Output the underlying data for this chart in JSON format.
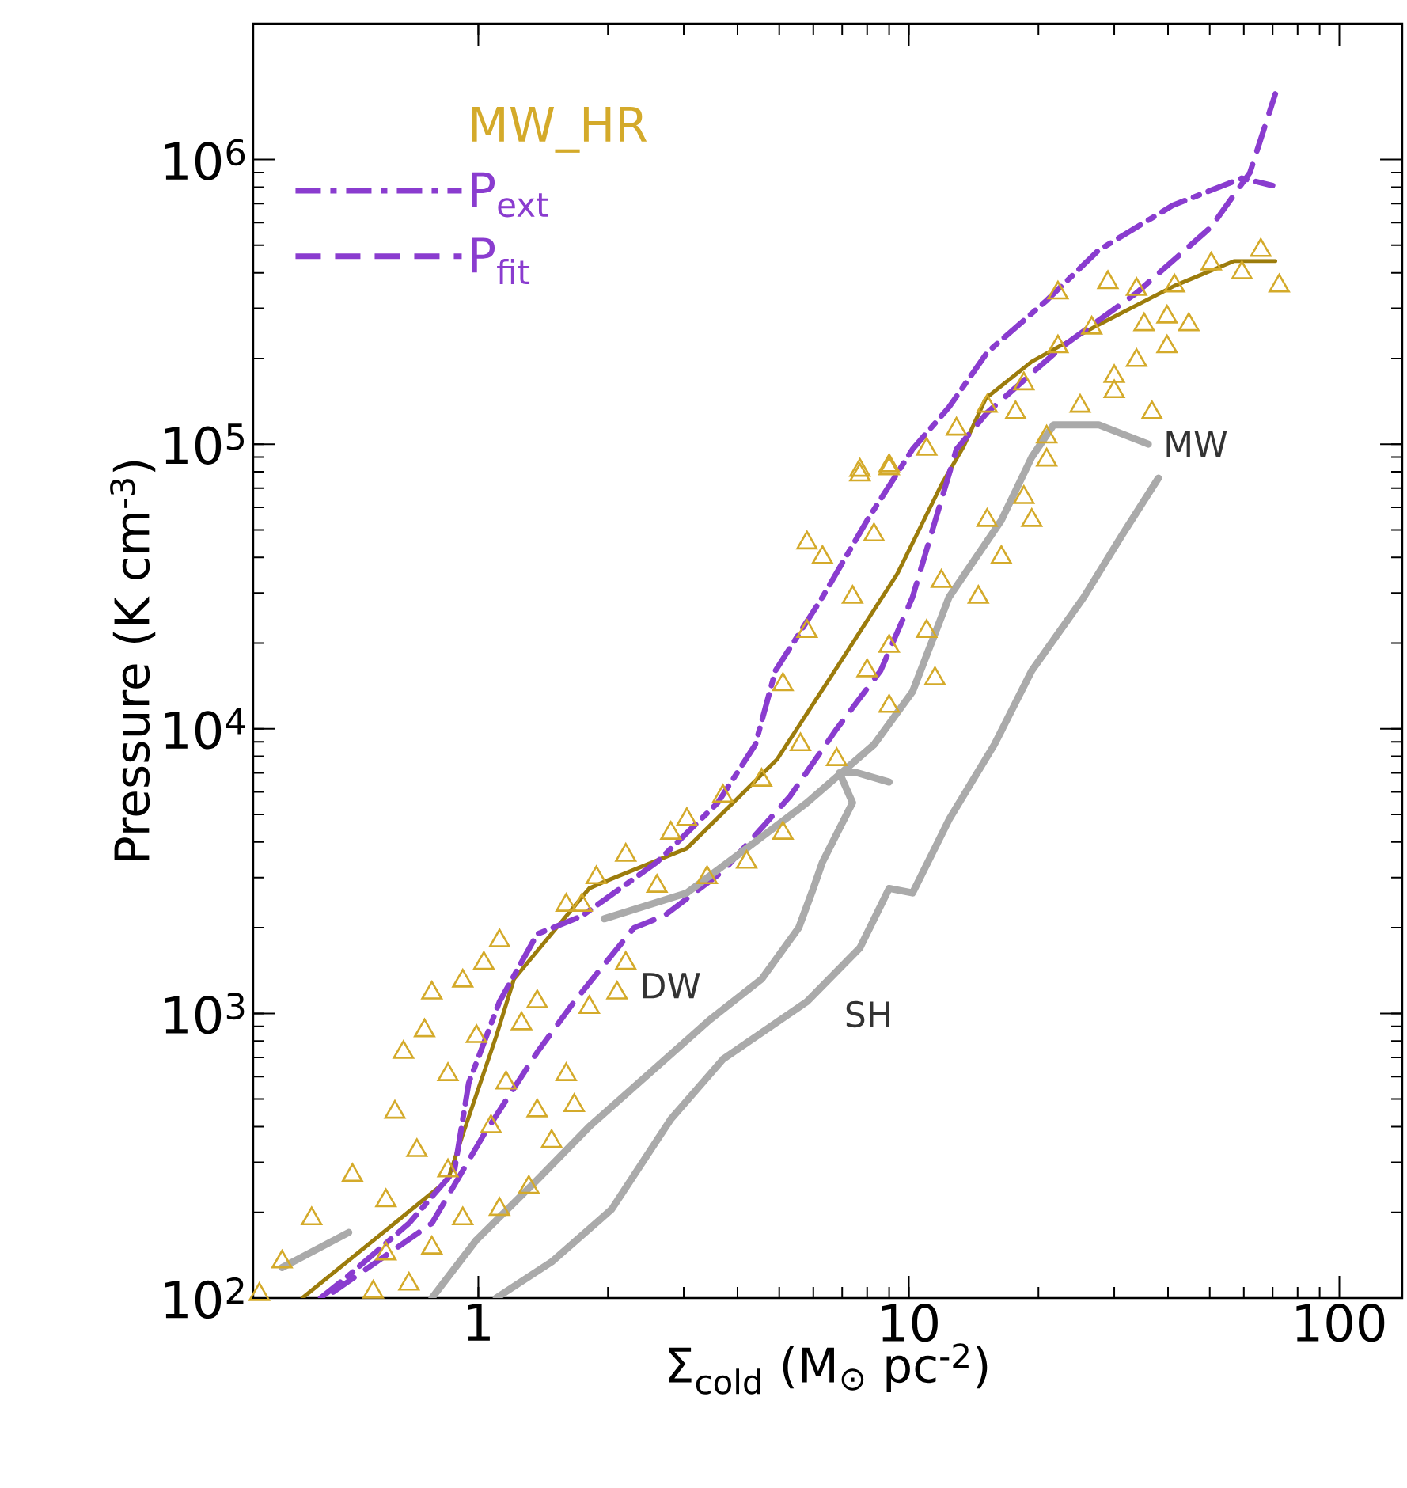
{
  "chart_data": {
    "type": "scatter",
    "xlabel": "Σ$_{cold}$  (M$_{⊙}$ pc$^{-2}$)",
    "ylabel": "Pressure  (K cm$^{-3}$)",
    "log": "xy",
    "legend": "top left",
    "xlim": [
      0.3,
      140
    ],
    "ylim": [
      100,
      3000000
    ],
    "xticks": [
      1,
      10,
      100
    ],
    "yticks": [
      {
        "value": 100,
        "label": "10$^{2}$"
      },
      {
        "value": 1000,
        "label": "10$^{3}$"
      },
      {
        "value": 10000,
        "label": "10$^{4}$"
      },
      {
        "value": 100000,
        "label": "10$^{5}$"
      },
      {
        "value": 1000000,
        "label": "10$^{6}$"
      }
    ],
    "series": [
      {
        "name": "MW_HR",
        "type": "scatter",
        "marker": "triangle",
        "color": "#d4aa2a",
        "x": [
          65.7,
          72.5,
          50.4,
          59.4,
          41.4,
          33.8,
          29,
          22.2,
          39.8,
          44.7,
          35.2,
          26.6,
          39.8,
          33.8,
          30,
          30,
          36.7,
          25,
          22.2,
          18.5,
          15.2,
          17.7,
          20.9,
          12.9,
          11,
          7.7,
          9.0,
          7.7,
          9.0,
          20.9,
          18.5,
          15.2,
          19.3,
          16.4,
          14.5,
          11.9,
          5.8,
          6.3,
          8.3,
          7.4,
          11,
          11.5,
          9.0,
          5.8,
          5.1,
          8.0,
          5.6,
          9.0,
          6.8,
          4.55,
          5.1,
          3.7,
          3.05,
          2.8,
          4.2,
          2.2,
          1.88,
          2.6,
          3.4,
          1.6,
          1.74,
          2.2,
          2.1,
          1.81,
          1.12,
          0.92,
          0.67,
          0.75,
          0.64,
          0.72,
          0.61,
          0.51,
          0.41,
          0.35,
          0.31,
          1.67,
          1.6,
          1.48,
          1.37,
          1.31,
          1.12,
          0.92,
          0.78,
          0.61,
          0.57,
          0.69,
          0.85,
          0.99,
          1.26,
          0.78,
          1.03,
          0.85,
          1.07,
          1.16,
          1.37
        ],
        "values": [
          480000,
          360000,
          430000,
          400000,
          360000,
          350000,
          370000,
          340000,
          280000,
          263000,
          263000,
          256000,
          220000,
          197000,
          173000,
          153000,
          129000,
          136000,
          220000,
          163000,
          136000,
          129000,
          106000,
          113000,
          96000,
          81000,
          84000,
          78000,
          82000,
          88000,
          65000,
          54000,
          54000,
          40000,
          29000,
          33000,
          45000,
          40000,
          48000,
          29000,
          22000,
          15000,
          12000,
          22000,
          14300,
          16000,
          8800,
          19500,
          7800,
          6600,
          4300,
          5800,
          4800,
          4300,
          3400,
          3600,
          3000,
          2800,
          3000,
          2400,
          2400,
          1500,
          1180,
          1050,
          1800,
          1300,
          730,
          870,
          450,
          330,
          220,
          270,
          190,
          134,
          103,
          475,
          610,
          355,
          455,
          245,
          205,
          190,
          150,
          143,
          105,
          112,
          610,
          830,
          920,
          1180,
          1500,
          280,
          400,
          570,
          1100
        ]
      },
      {
        "type": "line",
        "marker": "none",
        "line_style": "solid",
        "color": "#9c7c0c",
        "x": [
          0.39,
          0.85,
          0.92,
          1.1,
          1.21,
          1.81,
          1.96,
          3.05,
          4.94,
          6.8,
          9.4,
          11.9,
          13.4,
          15.1,
          19.3,
          27.6,
          41.4,
          57,
          71
        ],
        "values": [
          100,
          260,
          375,
          830,
          1320,
          2750,
          2900,
          3800,
          7800,
          16400,
          35000,
          72000,
          98000,
          145000,
          195000,
          263000,
          360000,
          440000,
          440000
        ]
      },
      {
        "name": "P$_{ext}$",
        "type": "line",
        "marker": "none",
        "line_style": "dashdot",
        "color": "#8a3ccf",
        "x": [
          0.43,
          0.5,
          0.69,
          0.88,
          0.95,
          1.12,
          1.37,
          1.74,
          2.6,
          3.6,
          4.4,
          4.9,
          6.3,
          8.0,
          10.2,
          12.4,
          15.2,
          20.9,
          27.6,
          41,
          59.4,
          70
        ],
        "values": [
          100,
          120,
          183,
          280,
          570,
          1100,
          1900,
          2200,
          3400,
          5500,
          8800,
          16000,
          29000,
          54000,
          96000,
          135000,
          210000,
          320000,
          480000,
          690000,
          860000,
          810000
        ]
      },
      {
        "name": "P$_{fit}$",
        "type": "line",
        "marker": "none",
        "line_style": "dashed",
        "color": "#8a3ccf",
        "x": [
          0.46,
          0.78,
          1.03,
          1.37,
          1.67,
          2.3,
          2.7,
          3.7,
          5.3,
          6.8,
          8.6,
          10.2,
          12.9,
          15.2,
          22.7,
          33.8,
          50.4,
          62,
          71
        ],
        "values": [
          105,
          183,
          375,
          730,
          1100,
          2000,
          2200,
          3160,
          5800,
          10000,
          16000,
          29000,
          96000,
          129000,
          220000,
          340000,
          580000,
          900000,
          1700000
        ]
      },
      {
        "name": "MW",
        "type": "line",
        "marker": "none",
        "line_style": "solid",
        "color": "#aaaaaa",
        "x": [
          0.35,
          0.5,
          1.0,
          1.96,
          3.05,
          4.2,
          5.8,
          8.3,
          10.2,
          12.4,
          16.4,
          19.3,
          21.7,
          27.6,
          36
        ],
        "values": [
          128,
          170,
          null,
          2150,
          2650,
          3800,
          5500,
          8800,
          13500,
          29000,
          54000,
          90000,
          117000,
          117000,
          100000
        ]
      },
      {
        "name": "DW",
        "type": "line",
        "marker": "none",
        "line_style": "solid",
        "color": "#aaaaaa",
        "x": [
          0.78,
          0.99,
          1.37,
          1.81,
          2.6,
          3.45,
          4.55,
          5.55,
          6.0,
          6.3,
          7.4,
          6.9,
          7.6,
          9.0
        ],
        "values": [
          100,
          160,
          260,
          400,
          650,
          950,
          1320,
          2000,
          2750,
          3400,
          5500,
          7000,
          7000,
          6500
        ]
      },
      {
        "name": "SH",
        "type": "line",
        "marker": "none",
        "line_style": "solid",
        "color": "#aaaaaa",
        "x": [
          1.1,
          1.48,
          2.04,
          2.8,
          3.7,
          5.8,
          7.7,
          9.0,
          10.2,
          12.4,
          15.8,
          19.3,
          25.5,
          31.3,
          38
        ],
        "values": [
          100,
          134,
          205,
          425,
          690,
          1100,
          1700,
          2750,
          2650,
          4800,
          8800,
          16000,
          29000,
          48000,
          76000
        ]
      }
    ]
  }
}
